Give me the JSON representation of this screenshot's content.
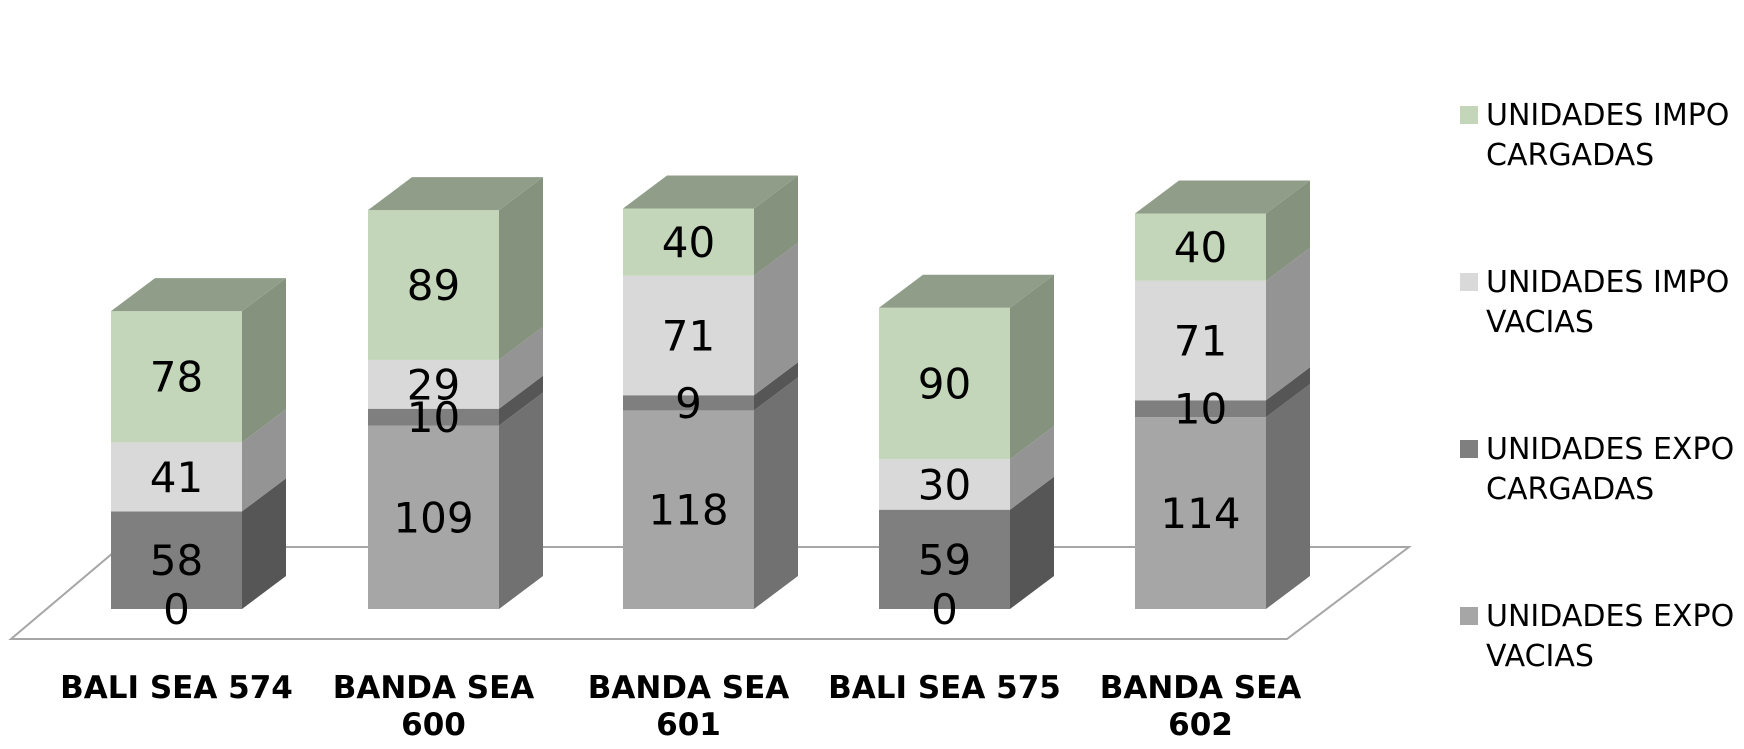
{
  "chart_data": {
    "type": "bar",
    "stacked": true,
    "three_d": true,
    "categories": [
      [
        "BALI SEA 574"
      ],
      [
        "BANDA SEA",
        "600"
      ],
      [
        "BANDA SEA",
        "601"
      ],
      [
        "BALI SEA 575"
      ],
      [
        "BANDA SEA",
        "602"
      ]
    ],
    "series": [
      {
        "name": [
          "UNIDADES EXPO",
          "VACIAS"
        ],
        "values": [
          0,
          109,
          118,
          0,
          114
        ],
        "color": "#a6a6a6"
      },
      {
        "name": [
          "UNIDADES EXPO",
          "CARGADAS"
        ],
        "values": [
          58,
          10,
          9,
          59,
          10
        ],
        "color": "#7f7f7f"
      },
      {
        "name": [
          "UNIDADES IMPO",
          "VACIAS"
        ],
        "values": [
          41,
          29,
          71,
          30,
          71
        ],
        "color": "#d9d9d9"
      },
      {
        "name": [
          "UNIDADES IMPO",
          "CARGADAS"
        ],
        "values": [
          78,
          89,
          40,
          90,
          40
        ],
        "color": "#c3d6b9"
      }
    ],
    "data_labels": true,
    "legend_position": "right",
    "grid": false
  }
}
